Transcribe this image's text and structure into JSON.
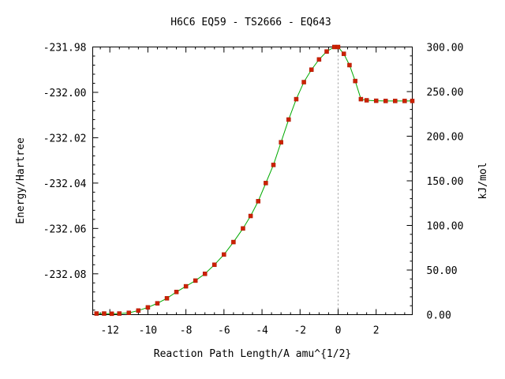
{
  "chart_data": {
    "type": "scatter",
    "title": "H6C6   EQ59 - TS2666 - EQ643",
    "xlabel": "Reaction Path Length/A amu^{1/2}",
    "ylabel": "Energy/Hartree",
    "y2label": "kJ/mol",
    "xlim": [
      -12.9,
      3.9
    ],
    "ylim": [
      -232.098,
      -231.98
    ],
    "y2lim": [
      0,
      300
    ],
    "x_ticks": [
      "-12",
      "-10",
      "-8",
      "-6",
      "-4",
      "-2",
      "0",
      "2"
    ],
    "y_ticks": [
      "-231.98",
      "-232.00",
      "-232.02",
      "-232.04",
      "-232.06",
      "-232.08"
    ],
    "y2_ticks": [
      "300.00",
      "250.00",
      "200.00",
      "150.00",
      "100.00",
      "50.00",
      "0.00"
    ],
    "grid": false,
    "reference_line_x": 0,
    "series": [
      {
        "color": "#cc2200",
        "line_color": "#00aa00",
        "x": [
          -12.7,
          -12.3,
          -11.9,
          -11.5,
          -11.0,
          -10.5,
          -10.0,
          -9.5,
          -9.0,
          -8.5,
          -8.0,
          -7.5,
          -7.0,
          -6.5,
          -6.0,
          -5.5,
          -5.0,
          -4.6,
          -4.2,
          -3.8,
          -3.4,
          -3.0,
          -2.6,
          -2.2,
          -1.8,
          -1.4,
          -1.0,
          -0.6,
          -0.2,
          0.0,
          0.3,
          0.6,
          0.9,
          1.2,
          1.5,
          2.0,
          2.5,
          3.0,
          3.5,
          3.9
        ],
        "y": [
          -232.0975,
          -232.0975,
          -232.0976,
          -232.0975,
          -232.0972,
          -232.0962,
          -232.0948,
          -232.093,
          -232.0908,
          -232.088,
          -232.0855,
          -232.083,
          -232.08,
          -232.076,
          -232.0715,
          -232.066,
          -232.06,
          -232.0545,
          -232.048,
          -232.04,
          -232.032,
          -232.022,
          -232.012,
          -232.003,
          -231.9955,
          -231.99,
          -231.9855,
          -231.982,
          -231.98,
          -231.98,
          -231.983,
          -231.988,
          -231.995,
          -232.003,
          -232.0035,
          -232.0037,
          -232.0038,
          -232.0038,
          -232.0038,
          -232.0038
        ]
      }
    ]
  }
}
